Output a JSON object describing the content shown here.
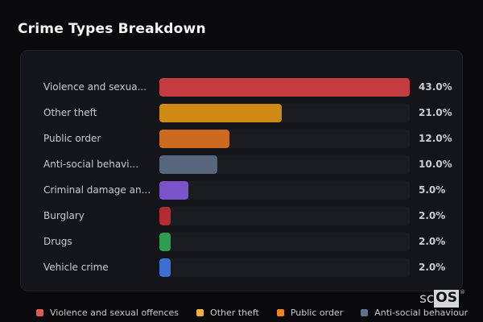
{
  "title": "Crime Types Breakdown",
  "colors": {
    "background": "#0a0a0d",
    "panel": "#14151a",
    "panel_border": "#212229",
    "bar_track": "#1b1c22",
    "title_text": "#f4f5f7",
    "category_text": "#c7cad0",
    "value_text": "#c9cbd0",
    "legend_text": "#c6c9cd"
  },
  "chart_data": {
    "type": "bar",
    "orientation": "horizontal",
    "title": "Crime Types Breakdown",
    "categories": [
      "Violence and sexua...",
      "Other theft",
      "Public order",
      "Anti-social behavi...",
      "Criminal damage an...",
      "Burglary",
      "Drugs",
      "Vehicle crime"
    ],
    "values": [
      43.0,
      21.0,
      12.0,
      10.0,
      5.0,
      2.0,
      2.0,
      2.0
    ],
    "value_labels": [
      "43.0%",
      "21.0%",
      "12.0%",
      "10.0%",
      "5.0%",
      "2.0%",
      "2.0%",
      "2.0%"
    ],
    "bar_colors": [
      "#c23c40",
      "#ce8a15",
      "#cc6a1f",
      "#57667d",
      "#7b54c9",
      "#b32b30",
      "#2d9e4e",
      "#3a70d4"
    ],
    "unit": "%",
    "xlim": [
      0,
      43
    ],
    "grid": false,
    "legend_position": "bottom"
  },
  "legend": [
    {
      "label": "Violence and sexual offences",
      "color": "#e25757"
    },
    {
      "label": "Other theft",
      "color": "#eeb13f"
    },
    {
      "label": "Public order",
      "color": "#ee8422"
    },
    {
      "label": "Anti-social behaviour",
      "color": "#5d7391"
    }
  ],
  "watermark": {
    "prefix": "sc",
    "suffix": "OS",
    "reg": "®"
  }
}
